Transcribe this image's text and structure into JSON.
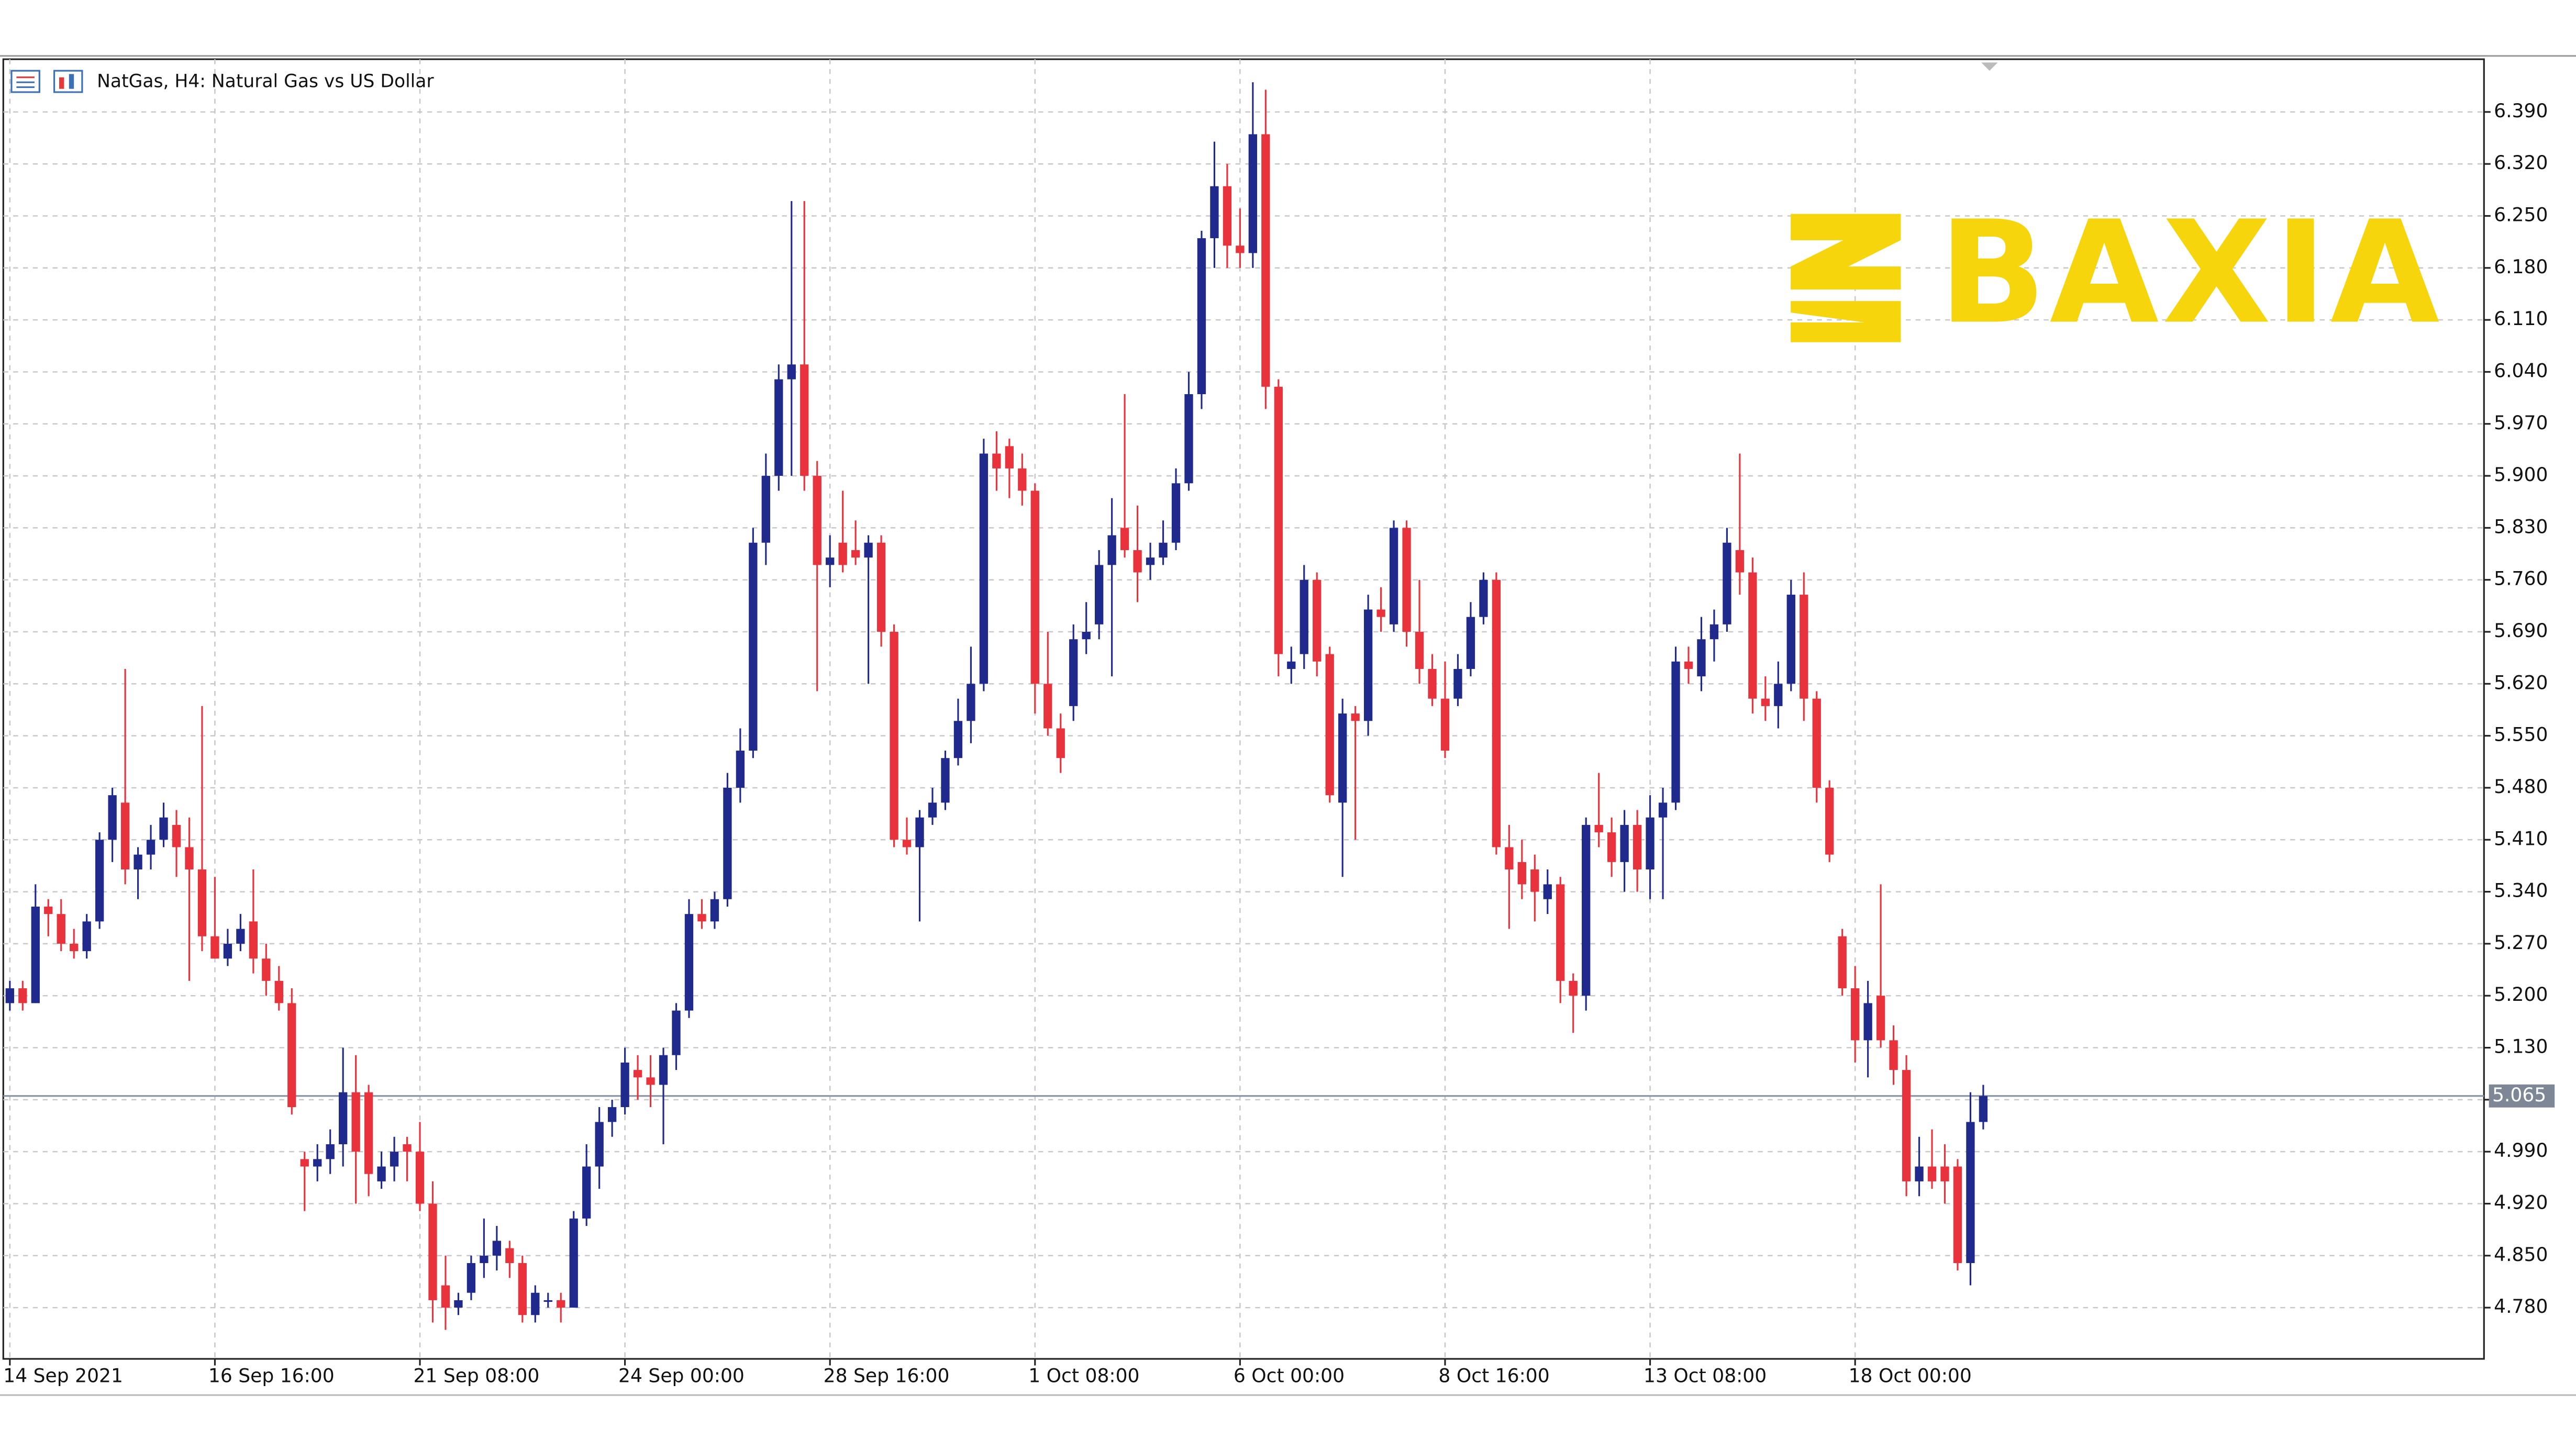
{
  "chart_data": {
    "type": "candlestick",
    "title": "NatGas, H4:  Natural Gas vs US Dollar",
    "watermark": "BAXIA",
    "up_color": "#1f2a8c",
    "down_color": "#e8333d",
    "grid": true,
    "ylim": [
      4.711,
      6.461
    ],
    "yticks": [
      {
        "value": 4.78,
        "label": "4.780"
      },
      {
        "value": 4.85,
        "label": "4.850"
      },
      {
        "value": 4.92,
        "label": "4.920"
      },
      {
        "value": 4.99,
        "label": "4.990"
      },
      {
        "value": 5.06,
        "label": "5.060"
      },
      {
        "value": 5.13,
        "label": "5.130"
      },
      {
        "value": 5.2,
        "label": "5.200"
      },
      {
        "value": 5.27,
        "label": "5.270"
      },
      {
        "value": 5.34,
        "label": "5.340"
      },
      {
        "value": 5.41,
        "label": "5.410"
      },
      {
        "value": 5.48,
        "label": "5.480"
      },
      {
        "value": 5.55,
        "label": "5.550"
      },
      {
        "value": 5.62,
        "label": "5.620"
      },
      {
        "value": 5.69,
        "label": "5.690"
      },
      {
        "value": 5.76,
        "label": "5.760"
      },
      {
        "value": 5.83,
        "label": "5.830"
      },
      {
        "value": 5.9,
        "label": "5.900"
      },
      {
        "value": 5.97,
        "label": "5.970"
      },
      {
        "value": 6.04,
        "label": "6.040"
      },
      {
        "value": 6.11,
        "label": "6.110"
      },
      {
        "value": 6.18,
        "label": "6.180"
      },
      {
        "value": 6.25,
        "label": "6.250"
      },
      {
        "value": 6.32,
        "label": "6.320"
      },
      {
        "value": 6.39,
        "label": "6.390"
      }
    ],
    "last_price": {
      "value": 5.065,
      "label": "5.065"
    },
    "categories": [
      "14 Sep 2021",
      null,
      null,
      null,
      null,
      null,
      null,
      null,
      null,
      null,
      null,
      null,
      null,
      null,
      null,
      null,
      "16 Sep 16:00",
      null,
      null,
      null,
      null,
      null,
      null,
      null,
      null,
      null,
      null,
      null,
      null,
      null,
      null,
      null,
      "21 Sep 08:00",
      null,
      null,
      null,
      null,
      null,
      null,
      null,
      null,
      null,
      null,
      null,
      null,
      null,
      null,
      null,
      "24 Sep 00:00",
      null,
      null,
      null,
      null,
      null,
      null,
      null,
      null,
      null,
      null,
      null,
      null,
      null,
      null,
      null,
      "28 Sep 16:00",
      null,
      null,
      null,
      null,
      null,
      null,
      null,
      null,
      null,
      null,
      null,
      null,
      null,
      null,
      null,
      "1 Oct 08:00",
      null,
      null,
      null,
      null,
      null,
      null,
      null,
      null,
      null,
      null,
      null,
      null,
      null,
      null,
      null,
      "6 Oct 00:00",
      null,
      null,
      null,
      null,
      null,
      null,
      null,
      null,
      null,
      null,
      null,
      null,
      null,
      null,
      null,
      "8 Oct 16:00",
      null,
      null,
      null,
      null,
      null,
      null,
      null,
      null,
      null,
      null,
      null,
      null,
      null,
      null,
      null,
      "13 Oct 08:00",
      null,
      null,
      null,
      null,
      null,
      null,
      null,
      null,
      null,
      null,
      null,
      null,
      null,
      null,
      null,
      "18 Oct 00:00",
      null,
      null,
      null,
      null,
      null,
      null,
      null,
      null,
      null,
      null
    ],
    "candles": [
      [
        5.19,
        5.22,
        5.18,
        5.21
      ],
      [
        5.21,
        5.22,
        5.18,
        5.19
      ],
      [
        5.19,
        5.35,
        5.19,
        5.32
      ],
      [
        5.32,
        5.33,
        5.28,
        5.31
      ],
      [
        5.31,
        5.33,
        5.26,
        5.27
      ],
      [
        5.27,
        5.29,
        5.25,
        5.26
      ],
      [
        5.26,
        5.31,
        5.25,
        5.3
      ],
      [
        5.3,
        5.42,
        5.29,
        5.41
      ],
      [
        5.41,
        5.48,
        5.38,
        5.47
      ],
      [
        5.46,
        5.64,
        5.35,
        5.37
      ],
      [
        5.37,
        5.4,
        5.33,
        5.39
      ],
      [
        5.39,
        5.43,
        5.37,
        5.41
      ],
      [
        5.41,
        5.46,
        5.4,
        5.44
      ],
      [
        5.43,
        5.45,
        5.36,
        5.4
      ],
      [
        5.4,
        5.44,
        5.22,
        5.37
      ],
      [
        5.37,
        5.59,
        5.26,
        5.28
      ],
      [
        5.28,
        5.36,
        5.25,
        5.25
      ],
      [
        5.25,
        5.29,
        5.24,
        5.27
      ],
      [
        5.27,
        5.31,
        5.26,
        5.29
      ],
      [
        5.3,
        5.37,
        5.23,
        5.25
      ],
      [
        5.25,
        5.27,
        5.2,
        5.22
      ],
      [
        5.22,
        5.24,
        5.18,
        5.19
      ],
      [
        5.19,
        5.21,
        5.04,
        5.05
      ],
      [
        4.98,
        4.99,
        4.91,
        4.97
      ],
      [
        4.97,
        5.0,
        4.95,
        4.98
      ],
      [
        4.98,
        5.02,
        4.96,
        5.0
      ],
      [
        5.0,
        5.13,
        4.97,
        5.07
      ],
      [
        5.07,
        5.12,
        4.92,
        4.99
      ],
      [
        5.07,
        5.08,
        4.93,
        4.96
      ],
      [
        4.95,
        4.99,
        4.94,
        4.97
      ],
      [
        4.97,
        5.01,
        4.95,
        4.99
      ],
      [
        5.0,
        5.01,
        4.95,
        4.99
      ],
      [
        4.99,
        5.03,
        4.91,
        4.92
      ],
      [
        4.92,
        4.95,
        4.76,
        4.79
      ],
      [
        4.81,
        4.85,
        4.75,
        4.78
      ],
      [
        4.78,
        4.8,
        4.77,
        4.79
      ],
      [
        4.8,
        4.85,
        4.79,
        4.84
      ],
      [
        4.84,
        4.9,
        4.82,
        4.85
      ],
      [
        4.85,
        4.89,
        4.83,
        4.87
      ],
      [
        4.86,
        4.87,
        4.82,
        4.84
      ],
      [
        4.84,
        4.85,
        4.76,
        4.77
      ],
      [
        4.77,
        4.81,
        4.76,
        4.8
      ],
      [
        4.79,
        4.8,
        4.78,
        4.79
      ],
      [
        4.79,
        4.8,
        4.76,
        4.78
      ],
      [
        4.78,
        4.91,
        4.78,
        4.9
      ],
      [
        4.9,
        5.0,
        4.89,
        4.97
      ],
      [
        4.97,
        5.05,
        4.94,
        5.03
      ],
      [
        5.03,
        5.06,
        5.01,
        5.05
      ],
      [
        5.05,
        5.13,
        5.04,
        5.11
      ],
      [
        5.1,
        5.12,
        5.06,
        5.09
      ],
      [
        5.09,
        5.12,
        5.05,
        5.08
      ],
      [
        5.08,
        5.13,
        5.0,
        5.12
      ],
      [
        5.12,
        5.19,
        5.1,
        5.18
      ],
      [
        5.18,
        5.33,
        5.17,
        5.31
      ],
      [
        5.31,
        5.33,
        5.29,
        5.3
      ],
      [
        5.3,
        5.34,
        5.29,
        5.33
      ],
      [
        5.33,
        5.5,
        5.32,
        5.48
      ],
      [
        5.48,
        5.56,
        5.46,
        5.53
      ],
      [
        5.53,
        5.83,
        5.52,
        5.81
      ],
      [
        5.81,
        5.93,
        5.78,
        5.9
      ],
      [
        5.9,
        6.05,
        5.88,
        6.03
      ],
      [
        6.03,
        6.27,
        5.9,
        6.05
      ],
      [
        6.05,
        6.27,
        5.88,
        5.9
      ],
      [
        5.9,
        5.92,
        5.61,
        5.78
      ],
      [
        5.78,
        5.82,
        5.75,
        5.79
      ],
      [
        5.81,
        5.88,
        5.77,
        5.78
      ],
      [
        5.8,
        5.84,
        5.78,
        5.79
      ],
      [
        5.79,
        5.82,
        5.62,
        5.81
      ],
      [
        5.81,
        5.82,
        5.67,
        5.69
      ],
      [
        5.69,
        5.7,
        5.4,
        5.41
      ],
      [
        5.41,
        5.44,
        5.39,
        5.4
      ],
      [
        5.4,
        5.45,
        5.3,
        5.44
      ],
      [
        5.44,
        5.48,
        5.43,
        5.46
      ],
      [
        5.46,
        5.53,
        5.45,
        5.52
      ],
      [
        5.52,
        5.6,
        5.51,
        5.57
      ],
      [
        5.57,
        5.67,
        5.54,
        5.62
      ],
      [
        5.62,
        5.95,
        5.61,
        5.93
      ],
      [
        5.93,
        5.96,
        5.88,
        5.91
      ],
      [
        5.94,
        5.95,
        5.87,
        5.91
      ],
      [
        5.91,
        5.93,
        5.86,
        5.88
      ],
      [
        5.88,
        5.89,
        5.58,
        5.62
      ],
      [
        5.62,
        5.69,
        5.55,
        5.56
      ],
      [
        5.56,
        5.58,
        5.5,
        5.52
      ],
      [
        5.59,
        5.7,
        5.57,
        5.68
      ],
      [
        5.68,
        5.73,
        5.66,
        5.69
      ],
      [
        5.7,
        5.8,
        5.68,
        5.78
      ],
      [
        5.78,
        5.87,
        5.63,
        5.82
      ],
      [
        5.83,
        6.01,
        5.79,
        5.8
      ],
      [
        5.8,
        5.86,
        5.73,
        5.77
      ],
      [
        5.78,
        5.81,
        5.76,
        5.79
      ],
      [
        5.79,
        5.84,
        5.78,
        5.81
      ],
      [
        5.81,
        5.91,
        5.8,
        5.89
      ],
      [
        5.89,
        6.04,
        5.88,
        6.01
      ],
      [
        6.01,
        6.23,
        5.99,
        6.22
      ],
      [
        6.22,
        6.35,
        6.18,
        6.29
      ],
      [
        6.29,
        6.32,
        6.18,
        6.21
      ],
      [
        6.21,
        6.26,
        6.18,
        6.2
      ],
      [
        6.2,
        6.43,
        6.18,
        6.36
      ],
      [
        6.36,
        6.42,
        5.99,
        6.02
      ],
      [
        6.02,
        6.03,
        5.63,
        5.66
      ],
      [
        5.64,
        5.67,
        5.62,
        5.65
      ],
      [
        5.66,
        5.78,
        5.64,
        5.76
      ],
      [
        5.76,
        5.77,
        5.63,
        5.65
      ],
      [
        5.66,
        5.67,
        5.46,
        5.47
      ],
      [
        5.46,
        5.6,
        5.36,
        5.58
      ],
      [
        5.58,
        5.59,
        5.41,
        5.57
      ],
      [
        5.57,
        5.74,
        5.55,
        5.72
      ],
      [
        5.72,
        5.75,
        5.69,
        5.71
      ],
      [
        5.7,
        5.84,
        5.69,
        5.83
      ],
      [
        5.83,
        5.84,
        5.67,
        5.69
      ],
      [
        5.69,
        5.76,
        5.62,
        5.64
      ],
      [
        5.64,
        5.66,
        5.59,
        5.6
      ],
      [
        5.6,
        5.65,
        5.52,
        5.53
      ],
      [
        5.6,
        5.66,
        5.59,
        5.64
      ],
      [
        5.64,
        5.73,
        5.63,
        5.71
      ],
      [
        5.71,
        5.77,
        5.7,
        5.76
      ],
      [
        5.76,
        5.77,
        5.39,
        5.4
      ],
      [
        5.4,
        5.43,
        5.29,
        5.37
      ],
      [
        5.38,
        5.41,
        5.33,
        5.35
      ],
      [
        5.37,
        5.39,
        5.3,
        5.34
      ],
      [
        5.33,
        5.37,
        5.31,
        5.35
      ],
      [
        5.35,
        5.36,
        5.19,
        5.22
      ],
      [
        5.22,
        5.23,
        5.15,
        5.2
      ],
      [
        5.2,
        5.44,
        5.18,
        5.43
      ],
      [
        5.43,
        5.5,
        5.4,
        5.42
      ],
      [
        5.42,
        5.44,
        5.36,
        5.38
      ],
      [
        5.38,
        5.45,
        5.34,
        5.43
      ],
      [
        5.43,
        5.45,
        5.34,
        5.37
      ],
      [
        5.37,
        5.47,
        5.33,
        5.44
      ],
      [
        5.44,
        5.48,
        5.33,
        5.46
      ],
      [
        5.46,
        5.67,
        5.45,
        5.65
      ],
      [
        5.65,
        5.67,
        5.62,
        5.64
      ],
      [
        5.63,
        5.71,
        5.61,
        5.68
      ],
      [
        5.68,
        5.72,
        5.65,
        5.7
      ],
      [
        5.7,
        5.83,
        5.69,
        5.81
      ],
      [
        5.8,
        5.93,
        5.74,
        5.77
      ],
      [
        5.77,
        5.79,
        5.58,
        5.6
      ],
      [
        5.6,
        5.63,
        5.57,
        5.59
      ],
      [
        5.59,
        5.65,
        5.56,
        5.62
      ],
      [
        5.62,
        5.76,
        5.61,
        5.74
      ],
      [
        5.74,
        5.77,
        5.57,
        5.6
      ],
      [
        5.6,
        5.61,
        5.46,
        5.48
      ],
      [
        5.48,
        5.49,
        5.38,
        5.39
      ],
      [
        5.28,
        5.29,
        5.2,
        5.21
      ],
      [
        5.21,
        5.24,
        5.11,
        5.14
      ],
      [
        5.14,
        5.22,
        5.09,
        5.19
      ],
      [
        5.2,
        5.35,
        5.13,
        5.14
      ],
      [
        5.14,
        5.16,
        5.08,
        5.1
      ],
      [
        5.1,
        5.12,
        4.93,
        4.95
      ],
      [
        4.95,
        5.01,
        4.93,
        4.97
      ],
      [
        4.97,
        5.02,
        4.94,
        4.95
      ],
      [
        4.97,
        5.0,
        4.92,
        4.95
      ],
      [
        4.97,
        4.98,
        4.83,
        4.84
      ],
      [
        4.84,
        5.07,
        4.81,
        5.03
      ],
      [
        5.03,
        5.08,
        5.02,
        5.065
      ]
    ]
  }
}
